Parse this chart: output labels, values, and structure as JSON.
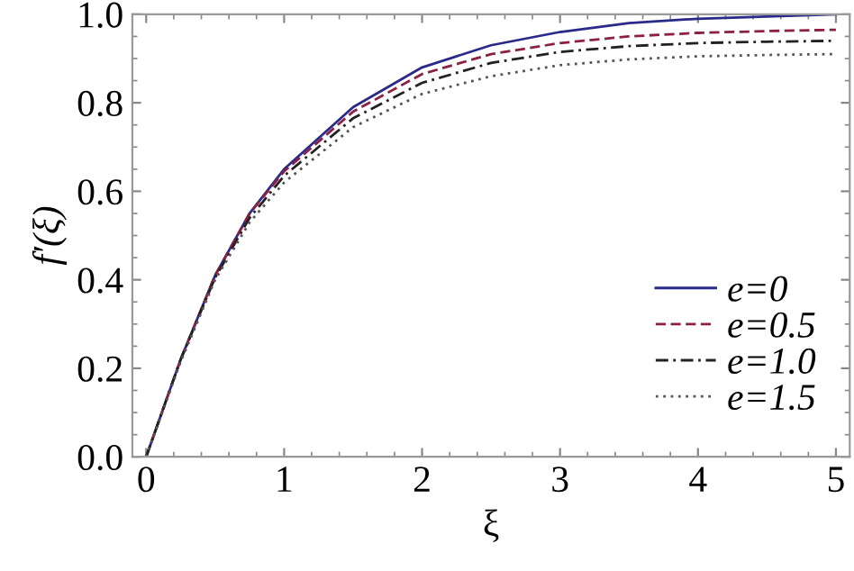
{
  "chart_data": {
    "type": "line",
    "xlabel": "ξ",
    "ylabel": "f′(ξ)",
    "x": [
      0,
      0.25,
      0.5,
      0.75,
      1,
      1.5,
      2,
      2.5,
      3,
      3.5,
      4,
      4.5,
      5
    ],
    "series": [
      {
        "name": "e=0",
        "color": "#2a2a8a",
        "line_style": "solid",
        "values": [
          0,
          0.22,
          0.41,
          0.55,
          0.65,
          0.79,
          0.88,
          0.93,
          0.96,
          0.98,
          0.99,
          0.995,
          1.0
        ]
      },
      {
        "name": "e=0.5",
        "color": "#8b2040",
        "line_style": "dashed",
        "values": [
          0,
          0.22,
          0.41,
          0.55,
          0.645,
          0.78,
          0.865,
          0.91,
          0.935,
          0.95,
          0.958,
          0.962,
          0.965
        ]
      },
      {
        "name": "e=1.0",
        "color": "#222222",
        "line_style": "dashdot",
        "values": [
          0,
          0.22,
          0.405,
          0.54,
          0.635,
          0.765,
          0.845,
          0.89,
          0.915,
          0.928,
          0.935,
          0.938,
          0.94
        ]
      },
      {
        "name": "e=1.5",
        "color": "#555555",
        "line_style": "dotted",
        "values": [
          0,
          0.215,
          0.4,
          0.53,
          0.62,
          0.745,
          0.82,
          0.86,
          0.885,
          0.898,
          0.905,
          0.908,
          0.91
        ]
      }
    ],
    "xlim": [
      -0.1,
      5.1
    ],
    "ylim": [
      0,
      1.0
    ],
    "xticks": [
      0,
      1,
      2,
      3,
      4,
      5
    ],
    "yticks": [
      {
        "value": 0,
        "label": "0.0"
      },
      {
        "value": 0.2,
        "label": "0.2"
      },
      {
        "value": 0.4,
        "label": "0.4"
      },
      {
        "value": 0.6,
        "label": "0.6"
      },
      {
        "value": 0.8,
        "label": "0.8"
      },
      {
        "value": 1.0,
        "label": "1.0"
      }
    ],
    "grid": false,
    "legend": "right"
  }
}
